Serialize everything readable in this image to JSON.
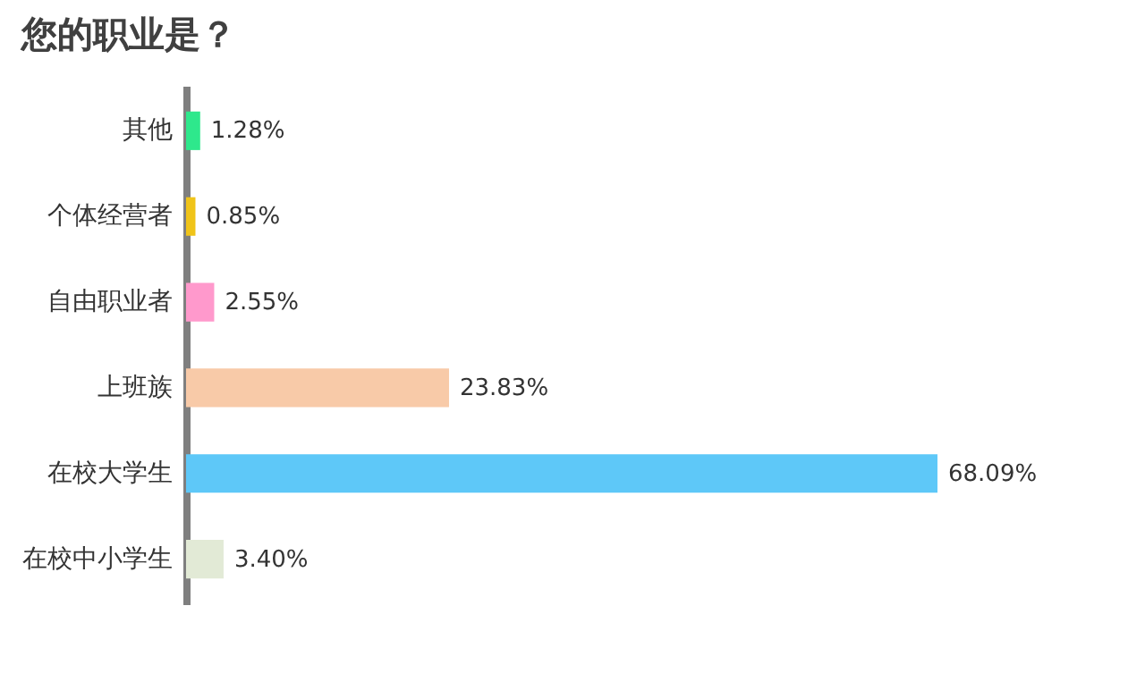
{
  "chart_data": {
    "type": "bar",
    "orientation": "horizontal",
    "title": "您的职业是？",
    "categories": [
      "其他",
      "个体经营者",
      "自由职业者",
      "上班族",
      "在校大学生",
      "在校中小学生"
    ],
    "values": [
      1.28,
      0.85,
      2.55,
      23.83,
      68.09,
      3.4
    ],
    "colors": [
      "#2ee88c",
      "#f0c419",
      "#ff99cc",
      "#f8caa8",
      "#5ec8f8",
      "#e2ead6"
    ],
    "value_labels": [
      "1.28%",
      "0.85%",
      "2.55%",
      "23.83%",
      "68.09%",
      "3.40%"
    ],
    "grid": false
  }
}
